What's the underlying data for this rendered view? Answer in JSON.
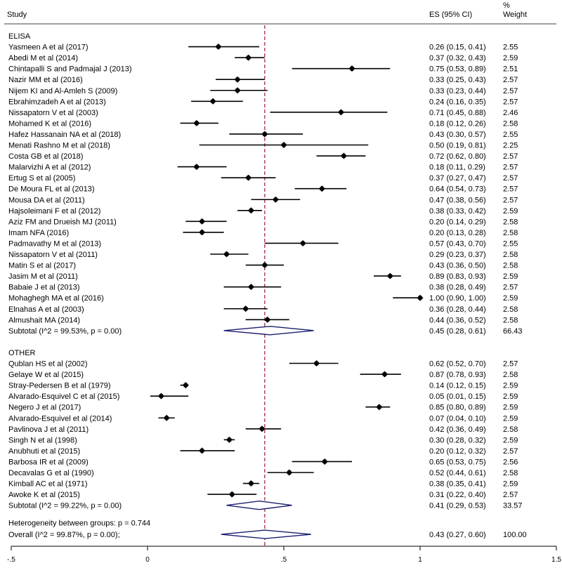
{
  "chart_data": {
    "type": "forest",
    "headers": {
      "study": "Study",
      "es": "ES (95% CI)",
      "weight_line1": "%",
      "weight_line2": "Weight"
    },
    "xlim": [
      -0.5,
      1.5
    ],
    "xticks": [
      -0.5,
      0,
      0.5,
      1,
      1.5
    ],
    "xtick_labels": [
      "-.5",
      "0",
      ".5",
      "1",
      "1.5"
    ],
    "overall_line": 0.43,
    "colors": {
      "diamond": "#1a1f6e",
      "overall_line": "#9b1b30",
      "marker": "#000000"
    },
    "groups": [
      {
        "name": "ELISA",
        "studies": [
          {
            "label": "Yasmeen A et al (2017)",
            "es": 0.26,
            "lo": 0.15,
            "hi": 0.41,
            "es_text": "0.26 (0.15, 0.41)",
            "weight": "2.55"
          },
          {
            "label": "Abedi M et al (2014)",
            "es": 0.37,
            "lo": 0.32,
            "hi": 0.43,
            "es_text": "0.37 (0.32, 0.43)",
            "weight": "2.59"
          },
          {
            "label": "Chintapalli S and Padmajal J (2013)",
            "es": 0.75,
            "lo": 0.53,
            "hi": 0.89,
            "es_text": "0.75 (0.53, 0.89)",
            "weight": "2.51"
          },
          {
            "label": "Nazir MM et al (2016)",
            "es": 0.33,
            "lo": 0.25,
            "hi": 0.43,
            "es_text": "0.33 (0.25, 0.43)",
            "weight": "2.57"
          },
          {
            "label": "Nijem KI and Al-Amleh S (2009)",
            "es": 0.33,
            "lo": 0.23,
            "hi": 0.44,
            "es_text": "0.33 (0.23, 0.44)",
            "weight": "2.57"
          },
          {
            "label": "Ebrahimzadeh A et al (2013)",
            "es": 0.24,
            "lo": 0.16,
            "hi": 0.35,
            "es_text": "0.24 (0.16, 0.35)",
            "weight": "2.57"
          },
          {
            "label": "Nissapatorn V et al (2003)",
            "es": 0.71,
            "lo": 0.45,
            "hi": 0.88,
            "es_text": "0.71 (0.45, 0.88)",
            "weight": "2.46"
          },
          {
            "label": "Mohamed K et al (2016)",
            "es": 0.18,
            "lo": 0.12,
            "hi": 0.26,
            "es_text": "0.18 (0.12, 0.26)",
            "weight": "2.58"
          },
          {
            "label": "Hafez Hassanain NA et al (2018)",
            "es": 0.43,
            "lo": 0.3,
            "hi": 0.57,
            "es_text": "0.43 (0.30, 0.57)",
            "weight": "2.55"
          },
          {
            "label": "Menati Rashno M et al (2018)",
            "es": 0.5,
            "lo": 0.19,
            "hi": 0.81,
            "es_text": "0.50 (0.19, 0.81)",
            "weight": "2.25"
          },
          {
            "label": "Costa GB et al (2018)",
            "es": 0.72,
            "lo": 0.62,
            "hi": 0.8,
            "es_text": "0.72 (0.62, 0.80)",
            "weight": "2.57"
          },
          {
            "label": "Malarvizhi A et al (2012)",
            "es": 0.18,
            "lo": 0.11,
            "hi": 0.29,
            "es_text": "0.18 (0.11, 0.29)",
            "weight": "2.57"
          },
          {
            "label": "Ertug S et al (2005)",
            "es": 0.37,
            "lo": 0.27,
            "hi": 0.47,
            "es_text": "0.37 (0.27, 0.47)",
            "weight": "2.57"
          },
          {
            "label": "De Moura FL et al (2013)",
            "es": 0.64,
            "lo": 0.54,
            "hi": 0.73,
            "es_text": "0.64 (0.54, 0.73)",
            "weight": "2.57"
          },
          {
            "label": "Mousa DA et al (2011)",
            "es": 0.47,
            "lo": 0.38,
            "hi": 0.56,
            "es_text": "0.47 (0.38, 0.56)",
            "weight": "2.57"
          },
          {
            "label": "Hajsoleimani F et al (2012)",
            "es": 0.38,
            "lo": 0.33,
            "hi": 0.42,
            "es_text": "0.38 (0.33, 0.42)",
            "weight": "2.59"
          },
          {
            "label": "Aziz FM and Drueish MJ (2011)",
            "es": 0.2,
            "lo": 0.14,
            "hi": 0.29,
            "es_text": "0.20 (0.14, 0.29)",
            "weight": "2.58"
          },
          {
            "label": "Imam NFA  (2016)",
            "es": 0.2,
            "lo": 0.13,
            "hi": 0.28,
            "es_text": "0.20 (0.13, 0.28)",
            "weight": "2.58"
          },
          {
            "label": "Padmavathy M et al (2013)",
            "es": 0.57,
            "lo": 0.43,
            "hi": 0.7,
            "es_text": "0.57 (0.43, 0.70)",
            "weight": "2.55"
          },
          {
            "label": "Nissapatorn V et al (2011)",
            "es": 0.29,
            "lo": 0.23,
            "hi": 0.37,
            "es_text": "0.29 (0.23, 0.37)",
            "weight": "2.58"
          },
          {
            "label": "Matin S et al (2017)",
            "es": 0.43,
            "lo": 0.36,
            "hi": 0.5,
            "es_text": "0.43 (0.36, 0.50)",
            "weight": "2.58"
          },
          {
            "label": "Jasim M et al (2011)",
            "es": 0.89,
            "lo": 0.83,
            "hi": 0.93,
            "es_text": "0.89 (0.83, 0.93)",
            "weight": "2.59"
          },
          {
            "label": "Babaie J et al (2013)",
            "es": 0.38,
            "lo": 0.28,
            "hi": 0.49,
            "es_text": "0.38 (0.28, 0.49)",
            "weight": "2.57"
          },
          {
            "label": "Mohaghegh MA et al  (2016)",
            "es": 1.0,
            "lo": 0.9,
            "hi": 1.0,
            "es_text": "1.00 (0.90, 1.00)",
            "weight": "2.59"
          },
          {
            "label": "Elnahas A et al (2003)",
            "es": 0.36,
            "lo": 0.28,
            "hi": 0.44,
            "es_text": "0.36 (0.28, 0.44)",
            "weight": "2.58"
          },
          {
            "label": "Almushait MA (2014)",
            "es": 0.44,
            "lo": 0.36,
            "hi": 0.52,
            "es_text": "0.44 (0.36, 0.52)",
            "weight": "2.58"
          }
        ],
        "subtotal": {
          "label": "Subtotal  (I^2 = 99.53%, p = 0.00)",
          "es": 0.45,
          "lo": 0.28,
          "hi": 0.61,
          "es_text": "0.45 (0.28, 0.61)",
          "weight": "66.43"
        }
      },
      {
        "name": "OTHER",
        "studies": [
          {
            "label": "Qublan HS et al (2002)",
            "es": 0.62,
            "lo": 0.52,
            "hi": 0.7,
            "es_text": "0.62 (0.52, 0.70)",
            "weight": "2.57"
          },
          {
            "label": "Gelaye W et al (2015)",
            "es": 0.87,
            "lo": 0.78,
            "hi": 0.93,
            "es_text": "0.87 (0.78, 0.93)",
            "weight": "2.58"
          },
          {
            "label": "Stray-Pedersen B et al (1979)",
            "es": 0.14,
            "lo": 0.12,
            "hi": 0.15,
            "es_text": "0.14 (0.12, 0.15)",
            "weight": "2.59"
          },
          {
            "label": "Alvarado-Esquivel C et al (2015)",
            "es": 0.05,
            "lo": 0.01,
            "hi": 0.15,
            "es_text": "0.05 (0.01, 0.15)",
            "weight": "2.59"
          },
          {
            "label": "Negero J et al (2017)",
            "es": 0.85,
            "lo": 0.8,
            "hi": 0.89,
            "es_text": "0.85 (0.80, 0.89)",
            "weight": "2.59"
          },
          {
            "label": "Alvarado-Esquivel et al (2014)",
            "es": 0.07,
            "lo": 0.04,
            "hi": 0.1,
            "es_text": "0.07 (0.04, 0.10)",
            "weight": "2.59"
          },
          {
            "label": "Pavlinova J et al (2011)",
            "es": 0.42,
            "lo": 0.36,
            "hi": 0.49,
            "es_text": "0.42 (0.36, 0.49)",
            "weight": "2.58"
          },
          {
            "label": "Singh N et al (1998)",
            "es": 0.3,
            "lo": 0.28,
            "hi": 0.32,
            "es_text": "0.30 (0.28, 0.32)",
            "weight": "2.59"
          },
          {
            "label": "Anubhuti et al (2015)",
            "es": 0.2,
            "lo": 0.12,
            "hi": 0.32,
            "es_text": "0.20 (0.12, 0.32)",
            "weight": "2.57"
          },
          {
            "label": "Barbosa IR et al (2009)",
            "es": 0.65,
            "lo": 0.53,
            "hi": 0.75,
            "es_text": "0.65 (0.53, 0.75)",
            "weight": "2.56"
          },
          {
            "label": "Decavalas G et al (1990)",
            "es": 0.52,
            "lo": 0.44,
            "hi": 0.61,
            "es_text": "0.52 (0.44, 0.61)",
            "weight": "2.58"
          },
          {
            "label": "Kimball AC et al (1971)",
            "es": 0.38,
            "lo": 0.35,
            "hi": 0.41,
            "es_text": "0.38 (0.35, 0.41)",
            "weight": "2.59"
          },
          {
            "label": "Awoke K et al (2015)",
            "es": 0.31,
            "lo": 0.22,
            "hi": 0.4,
            "es_text": "0.31 (0.22, 0.40)",
            "weight": "2.57"
          }
        ],
        "subtotal": {
          "label": "Subtotal  (I^2 = 99.22%, p = 0.00)",
          "es": 0.41,
          "lo": 0.29,
          "hi": 0.53,
          "es_text": "0.41 (0.29, 0.53)",
          "weight": "33.57"
        }
      }
    ],
    "heterogeneity": "Heterogeneity between groups: p = 0.744",
    "overall": {
      "label": "Overall  (I^2 = 99.87%, p = 0.00);",
      "es": 0.43,
      "lo": 0.27,
      "hi": 0.6,
      "es_text": "0.43 (0.27, 0.60)",
      "weight": "100.00"
    }
  }
}
